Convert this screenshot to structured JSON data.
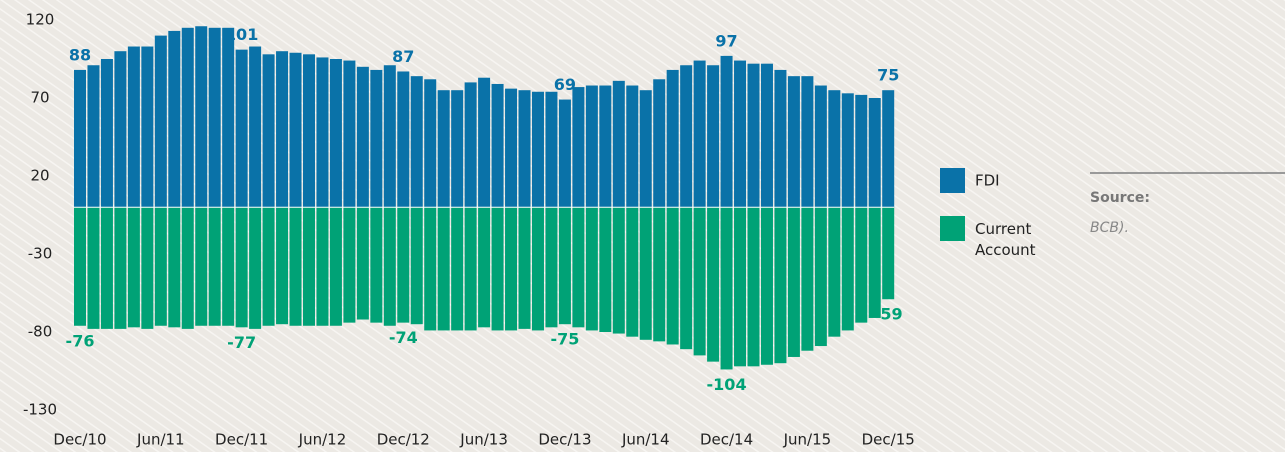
{
  "chart_data": {
    "type": "bar",
    "categories": [
      "Dec/10",
      null,
      null,
      null,
      null,
      null,
      "Jun/11",
      null,
      null,
      null,
      null,
      null,
      "Dec/11",
      null,
      null,
      null,
      null,
      null,
      "Jun/12",
      null,
      null,
      null,
      null,
      null,
      "Dec/12",
      null,
      null,
      null,
      null,
      null,
      "Jun/13",
      null,
      null,
      null,
      null,
      null,
      "Dec/13",
      null,
      null,
      null,
      null,
      null,
      "Jun/14",
      null,
      null,
      null,
      null,
      null,
      "Dec/14",
      null,
      null,
      null,
      null,
      null,
      "Jun/15",
      null,
      null,
      null,
      null,
      null,
      "Dec/15"
    ],
    "series": [
      {
        "name": "FDI",
        "color": "#0a72a8",
        "values": [
          88,
          91,
          95,
          100,
          103,
          103,
          110,
          113,
          115,
          116,
          115,
          115,
          101,
          103,
          98,
          100,
          99,
          98,
          96,
          95,
          94,
          90,
          88,
          91,
          87,
          84,
          82,
          75,
          75,
          80,
          83,
          79,
          76,
          75,
          74,
          74,
          69,
          77,
          78,
          78,
          81,
          78,
          75,
          82,
          88,
          91,
          94,
          91,
          97,
          94,
          92,
          92,
          88,
          84,
          84,
          78,
          75,
          73,
          72,
          70,
          75
        ],
        "value_labels": [
          "88",
          null,
          null,
          null,
          null,
          null,
          null,
          null,
          null,
          null,
          null,
          null,
          "101",
          null,
          null,
          null,
          null,
          null,
          null,
          null,
          null,
          null,
          null,
          null,
          "87",
          null,
          null,
          null,
          null,
          null,
          null,
          null,
          null,
          null,
          null,
          null,
          "69",
          null,
          null,
          null,
          null,
          null,
          null,
          null,
          null,
          null,
          null,
          null,
          "97",
          null,
          null,
          null,
          null,
          null,
          null,
          null,
          null,
          null,
          null,
          null,
          "75"
        ]
      },
      {
        "name": "Current Account",
        "color": "#00a276",
        "values": [
          -76,
          -78,
          -78,
          -78,
          -77,
          -78,
          -76,
          -77,
          -78,
          -76,
          -76,
          -76,
          -77,
          -78,
          -76,
          -75,
          -76,
          -76,
          -76,
          -76,
          -74,
          -72,
          -74,
          -76,
          -74,
          -75,
          -79,
          -79,
          -79,
          -79,
          -77,
          -79,
          -79,
          -78,
          -79,
          -77,
          -75,
          -77,
          -79,
          -80,
          -81,
          -83,
          -85,
          -86,
          -88,
          -91,
          -95,
          -99,
          -104,
          -102,
          -102,
          -101,
          -100,
          -96,
          -92,
          -89,
          -83,
          -79,
          -74,
          -71,
          -59
        ],
        "value_labels": [
          "-76",
          null,
          null,
          null,
          null,
          null,
          null,
          null,
          null,
          null,
          null,
          null,
          "-77",
          null,
          null,
          null,
          null,
          null,
          null,
          null,
          null,
          null,
          null,
          null,
          "-74",
          null,
          null,
          null,
          null,
          null,
          null,
          null,
          null,
          null,
          null,
          null,
          "-75",
          null,
          null,
          null,
          null,
          null,
          null,
          null,
          null,
          null,
          null,
          null,
          "-104",
          null,
          null,
          null,
          null,
          null,
          null,
          null,
          null,
          null,
          null,
          null,
          "-59"
        ]
      }
    ],
    "ylim": [
      -130,
      120
    ],
    "yticks": [
      -130,
      -80,
      -30,
      20,
      70,
      120
    ],
    "stacked": false,
    "source": {
      "label": "Source:",
      "text": "BCB)."
    }
  }
}
